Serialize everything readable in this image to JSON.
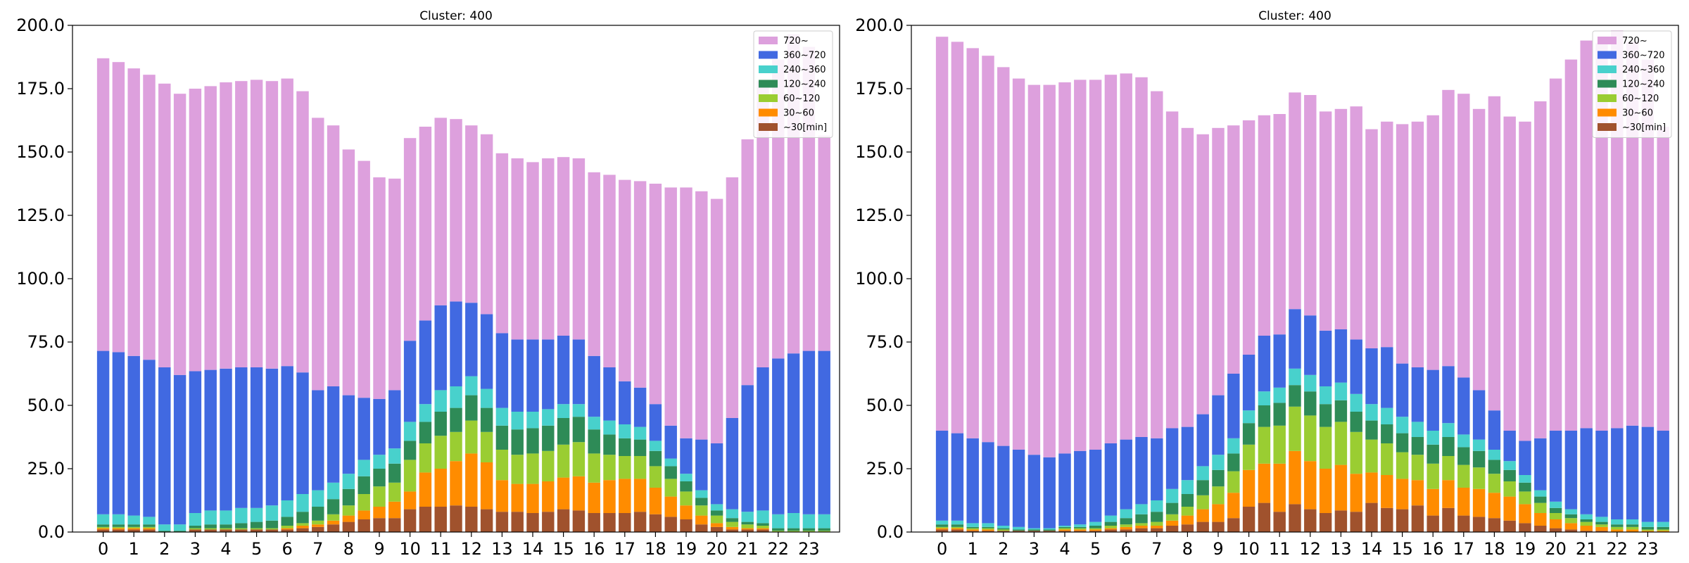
{
  "chart_data": [
    {
      "type": "bar",
      "stacked": true,
      "title": "Cluster: 400",
      "xlabel": "",
      "ylabel": "",
      "ylim": [
        0,
        200
      ],
      "yticks": [
        "0.0",
        "25.0",
        "50.0",
        "75.0",
        "100.0",
        "125.0",
        "150.0",
        "175.0",
        "200.0"
      ],
      "xticks": [
        "0",
        "1",
        "2",
        "3",
        "4",
        "5",
        "6",
        "7",
        "8",
        "9",
        "10",
        "11",
        "12",
        "13",
        "14",
        "15",
        "16",
        "17",
        "18",
        "19",
        "20",
        "21",
        "22",
        "23"
      ],
      "x": [
        0,
        0.5,
        1,
        1.5,
        2,
        2.5,
        3,
        3.5,
        4,
        4.5,
        5,
        5.5,
        6,
        6.5,
        7,
        7.5,
        8,
        8.5,
        9,
        9.5,
        10,
        10.5,
        11,
        11.5,
        12,
        12.5,
        13,
        13.5,
        14,
        14.5,
        15,
        15.5,
        16,
        16.5,
        17,
        17.5,
        18,
        18.5,
        19,
        19.5,
        20,
        20.5,
        21,
        21.5,
        22,
        22.5,
        23,
        23.5
      ],
      "legend_position": "top-right",
      "grid": false,
      "series": [
        {
          "name": "~30[min]",
          "color": "#a0522d",
          "values": [
            1,
            1,
            1,
            1,
            0,
            0,
            1,
            1,
            1,
            1,
            1,
            1,
            1,
            1.5,
            2,
            3,
            4,
            5,
            5.5,
            5.5,
            9,
            10,
            10,
            10.5,
            10,
            9,
            8,
            8,
            7.5,
            8,
            9,
            8.5,
            7.5,
            7.5,
            7.5,
            8,
            7,
            6,
            5,
            3,
            2,
            1,
            1,
            1,
            0,
            0,
            0,
            0
          ]
        },
        {
          "name": "30~60",
          "color": "#ff8c00",
          "values": [
            0.5,
            0.5,
            0.5,
            0.5,
            0,
            0,
            0,
            0,
            0,
            0,
            0,
            0,
            0.5,
            1,
            1,
            1.5,
            2.5,
            3.5,
            4.5,
            6.5,
            7,
            13.5,
            15,
            17.5,
            21,
            18.5,
            12.5,
            11,
            11.5,
            12,
            12.5,
            13.5,
            12,
            13,
            13.5,
            13,
            10.5,
            8,
            5.5,
            3.5,
            1.5,
            1,
            0.5,
            0.5,
            0,
            0,
            0,
            0
          ]
        },
        {
          "name": "60~120",
          "color": "#9acd32",
          "values": [
            0.5,
            0.5,
            0.5,
            0.5,
            0,
            0,
            0.5,
            0.5,
            0.5,
            0.5,
            0.5,
            0.5,
            1,
            1,
            1.5,
            2.5,
            4,
            6.5,
            8,
            7.5,
            12.5,
            11.5,
            13,
            11.5,
            13,
            12,
            12,
            11.5,
            12,
            12,
            13,
            13.5,
            11.5,
            10,
            9,
            9,
            8.5,
            7,
            5.5,
            4,
            3,
            2,
            1.5,
            1,
            0.5,
            0.5,
            0.5,
            0.5
          ]
        },
        {
          "name": "120~240",
          "color": "#2e8b57",
          "values": [
            1,
            1,
            1,
            1,
            0.5,
            0.5,
            1,
            1.5,
            1.5,
            2,
            2.5,
            3,
            3.5,
            4.5,
            5.5,
            6,
            6.5,
            7,
            7,
            7.5,
            7.5,
            8.5,
            9.5,
            9.5,
            10,
            9.5,
            9.5,
            10,
            10,
            10,
            10.5,
            10,
            9.5,
            8,
            7,
            6.5,
            6,
            5,
            4,
            3,
            2,
            1.5,
            1,
            1,
            1,
            1,
            1,
            1
          ]
        },
        {
          "name": "240~360",
          "color": "#48d1cc",
          "values": [
            4,
            4,
            3.5,
            3,
            2.5,
            2.5,
            5,
            5.5,
            5.5,
            6,
            5.5,
            6,
            6.5,
            7,
            6.5,
            6.5,
            6,
            6.5,
            5.5,
            6,
            7.5,
            7,
            8.5,
            8.5,
            7.5,
            7.5,
            7,
            7,
            6.5,
            6.5,
            5.5,
            5,
            5,
            5.5,
            5.5,
            5,
            4,
            3,
            3,
            3,
            2.5,
            3.5,
            4,
            5,
            5.5,
            6,
            5.5,
            5.5
          ]
        },
        {
          "name": "360~720",
          "color": "#4169e1",
          "values": [
            64.5,
            64,
            63,
            62,
            62,
            59,
            56,
            55.5,
            56,
            55.5,
            55.5,
            54,
            53,
            48,
            39.5,
            38,
            31,
            24.5,
            22,
            23,
            32,
            33,
            33.5,
            33.5,
            29,
            29.5,
            29.5,
            28.5,
            28.5,
            27.5,
            27,
            25.5,
            24,
            21,
            17,
            15.5,
            14.5,
            13,
            14,
            20,
            24,
            36,
            50,
            56.5,
            61.5,
            63,
            64.5,
            64.5
          ]
        },
        {
          "name": "720~",
          "color": "#dda0dd",
          "values": [
            115.5,
            114.5,
            113.5,
            112.5,
            112,
            111,
            111.5,
            112,
            113,
            113,
            113.5,
            113.5,
            113.5,
            111,
            107.5,
            103,
            97,
            93.5,
            87.5,
            83.5,
            80,
            76.5,
            74,
            72,
            70,
            71,
            71,
            71.5,
            70,
            71.5,
            70.5,
            71.5,
            72.5,
            76,
            79.5,
            81.5,
            87,
            94,
            99,
            98,
            96.5,
            95,
            97,
            113,
            118,
            126,
            120,
            85
          ]
        }
      ]
    },
    {
      "type": "bar",
      "stacked": true,
      "title": "Cluster: 400",
      "xlabel": "",
      "ylabel": "",
      "ylim": [
        0,
        200
      ],
      "yticks": [
        "0.0",
        "25.0",
        "50.0",
        "75.0",
        "100.0",
        "125.0",
        "150.0",
        "175.0",
        "200.0"
      ],
      "xticks": [
        "0",
        "1",
        "2",
        "3",
        "4",
        "5",
        "6",
        "7",
        "8",
        "9",
        "10",
        "11",
        "12",
        "13",
        "14",
        "15",
        "16",
        "17",
        "18",
        "19",
        "20",
        "21",
        "22",
        "23"
      ],
      "x": [
        0,
        0.5,
        1,
        1.5,
        2,
        2.5,
        3,
        3.5,
        4,
        4.5,
        5,
        5.5,
        6,
        6.5,
        7,
        7.5,
        8,
        8.5,
        9,
        9.5,
        10,
        10.5,
        11,
        11.5,
        12,
        12.5,
        13,
        13.5,
        14,
        14.5,
        15,
        15.5,
        16,
        16.5,
        17,
        17.5,
        18,
        18.5,
        19,
        19.5,
        20,
        20.5,
        21,
        21.5,
        22,
        22.5,
        23,
        23.5
      ],
      "legend_position": "top-right",
      "grid": false,
      "series": [
        {
          "name": "~30[min]",
          "color": "#a0522d",
          "values": [
            1,
            1,
            0.5,
            0.5,
            0.5,
            0.5,
            0.5,
            0.5,
            0.5,
            0.5,
            0.5,
            1,
            1,
            1.5,
            1.5,
            2.5,
            3,
            4,
            4,
            5.5,
            10,
            11.5,
            8,
            11,
            9,
            7.5,
            8.5,
            8,
            11.5,
            9.5,
            9,
            10.5,
            6.5,
            9.5,
            6.5,
            6,
            5.5,
            4.5,
            3.5,
            2.5,
            1.5,
            1,
            0.5,
            0.5,
            0,
            0,
            0,
            0
          ]
        },
        {
          "name": "30~60",
          "color": "#ff8c00",
          "values": [
            0.5,
            0.5,
            0.5,
            0.5,
            0,
            0,
            0,
            0,
            0.5,
            0.5,
            0.5,
            0.5,
            1,
            1,
            1,
            2,
            3.5,
            5,
            7,
            10,
            14.5,
            15.5,
            19,
            21,
            19,
            17.5,
            18,
            15,
            12,
            13,
            12,
            10,
            10.5,
            11,
            11,
            11,
            10,
            9.5,
            7.5,
            5,
            3.5,
            2.5,
            2,
            1.5,
            1,
            1,
            0.5,
            0.5
          ]
        },
        {
          "name": "60~120",
          "color": "#9acd32",
          "values": [
            0.5,
            0.5,
            0.5,
            0.5,
            0.5,
            0,
            0,
            0,
            0.5,
            0.5,
            0.5,
            1,
            1,
            1,
            1.5,
            2.5,
            3.5,
            5.5,
            7,
            8.5,
            10,
            14.5,
            15,
            17.5,
            18,
            16.5,
            17,
            16.5,
            13,
            12.5,
            10.5,
            10,
            10,
            9.5,
            9,
            8.5,
            7.5,
            6,
            5,
            4,
            2.5,
            2,
            1.5,
            1,
            1,
            1,
            0.5,
            0.5
          ]
        },
        {
          "name": "120~240",
          "color": "#2e8b57",
          "values": [
            1,
            1,
            0.5,
            0.5,
            0.5,
            0.5,
            0.5,
            0.5,
            0.5,
            0.5,
            1,
            1.5,
            2.5,
            3.5,
            4,
            4.5,
            5,
            6,
            6.5,
            7,
            8.5,
            8.5,
            9,
            8.5,
            9.5,
            9,
            8.5,
            8,
            7.5,
            7.5,
            7.5,
            7,
            7.5,
            7.5,
            7,
            6.5,
            5.5,
            4.5,
            3.5,
            2.5,
            2,
            1.5,
            1,
            1,
            1,
            1,
            1,
            1
          ]
        },
        {
          "name": "240~360",
          "color": "#48d1cc",
          "values": [
            1.5,
            1.5,
            1.5,
            1.5,
            1,
            1,
            0.5,
            0.5,
            0.5,
            1,
            1.5,
            2.5,
            3.5,
            4,
            4.5,
            5.5,
            5.5,
            5.5,
            6,
            6,
            5,
            5.5,
            6,
            6.5,
            6.5,
            7,
            7,
            7,
            6.5,
            6.5,
            6.5,
            6,
            5.5,
            5.5,
            5,
            4.5,
            4,
            3.5,
            3,
            2.5,
            2.5,
            2,
            2,
            2,
            2,
            2,
            2,
            2
          ]
        },
        {
          "name": "360~720",
          "color": "#4169e1",
          "values": [
            35.5,
            34.5,
            33.5,
            32,
            31.5,
            30.5,
            29,
            28,
            28.5,
            29,
            28.5,
            28.5,
            27.5,
            26.5,
            24.5,
            24,
            21,
            20.5,
            23.5,
            25.5,
            22,
            22,
            21,
            23.5,
            23.5,
            22,
            21,
            21.5,
            22,
            24,
            21,
            21.5,
            24,
            22.5,
            22.5,
            19.5,
            15.5,
            12,
            13.5,
            20.5,
            28,
            31,
            34,
            34,
            36,
            37,
            37.5,
            36
          ]
        },
        {
          "name": "720~",
          "color": "#dda0dd",
          "values": [
            155.5,
            154.5,
            154,
            152.5,
            149.5,
            146.5,
            146,
            147,
            146.5,
            146.5,
            146,
            145.5,
            144.5,
            142,
            137,
            125,
            118,
            110.5,
            105.5,
            98,
            92.5,
            87,
            87,
            85.5,
            87,
            86.5,
            87,
            92,
            86.5,
            89,
            94.5,
            97,
            100.5,
            109,
            112,
            111,
            124,
            124,
            126,
            133,
            139,
            146.5,
            153,
            153,
            157,
            151.5,
            145,
            120
          ]
        }
      ]
    }
  ]
}
